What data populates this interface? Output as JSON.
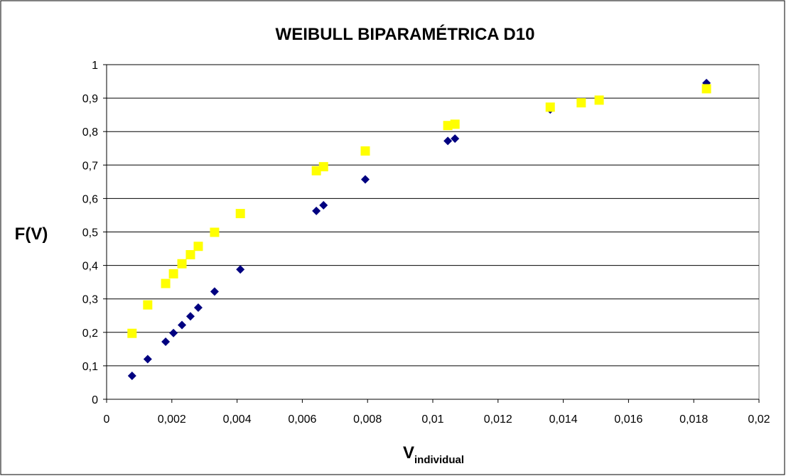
{
  "chart_data": {
    "type": "scatter",
    "title": "WEIBULL BIPARAMÉTRICA D10",
    "ylabel": "F(V)",
    "xlabel": "V",
    "xlabel_subscript": "individual",
    "xlim": [
      0,
      0.02
    ],
    "ylim": [
      0,
      1
    ],
    "xticks": [
      0,
      {
        "value": 0.002,
        "label": "0,002"
      },
      {
        "value": 0.004,
        "label": "0,004"
      },
      {
        "value": 0.006,
        "label": "0,006"
      },
      {
        "value": 0.008,
        "label": "0,008"
      },
      {
        "value": 0.01,
        "label": "0,01"
      },
      {
        "value": 0.012,
        "label": "0,012"
      },
      {
        "value": 0.014,
        "label": "0,014"
      },
      {
        "value": 0.016,
        "label": "0,016"
      },
      {
        "value": 0.018,
        "label": "0,018"
      },
      {
        "value": 0.02,
        "label": "0,02"
      }
    ],
    "yticks": [
      0,
      {
        "value": 0.1,
        "label": "0,1"
      },
      {
        "value": 0.2,
        "label": "0,2"
      },
      {
        "value": 0.3,
        "label": "0,3"
      },
      {
        "value": 0.4,
        "label": "0,4"
      },
      {
        "value": 0.5,
        "label": "0,5"
      },
      {
        "value": 0.6,
        "label": "0,6"
      },
      {
        "value": 0.7,
        "label": "0,7"
      },
      {
        "value": 0.8,
        "label": "0,8"
      },
      {
        "value": 0.9,
        "label": "0,9"
      },
      1
    ],
    "grid": true,
    "series": [
      {
        "color": "#000080",
        "marker": "diamond",
        "x": [
          0.00078,
          0.00126,
          0.00181,
          0.00205,
          0.00231,
          0.00257,
          0.00281,
          0.00331,
          0.0041,
          0.00643,
          0.00665,
          0.00793,
          0.01046,
          0.01068,
          0.0136,
          0.01839
        ],
        "values": [
          0.07,
          0.12,
          0.172,
          0.198,
          0.222,
          0.248,
          0.274,
          0.322,
          0.388,
          0.563,
          0.58,
          0.657,
          0.772,
          0.779,
          0.866,
          0.945
        ]
      },
      {
        "color": "#ffff00",
        "marker": "square",
        "x": [
          0.00078,
          0.00126,
          0.00181,
          0.00205,
          0.00231,
          0.00257,
          0.00281,
          0.00331,
          0.0041,
          0.00643,
          0.00665,
          0.00793,
          0.01046,
          0.01068,
          0.0136,
          0.01455,
          0.0151,
          0.01839
        ],
        "values": [
          0.197,
          0.282,
          0.346,
          0.375,
          0.405,
          0.432,
          0.457,
          0.499,
          0.555,
          0.683,
          0.695,
          0.742,
          0.818,
          0.822,
          0.873,
          0.886,
          0.894,
          0.928
        ]
      }
    ]
  }
}
